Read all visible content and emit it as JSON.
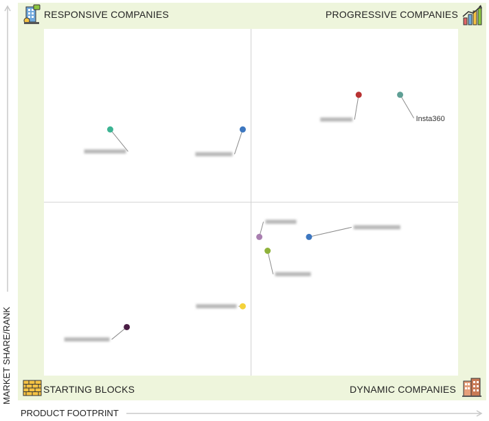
{
  "quadrants": {
    "top_left": "RESPONSIVE COMPANIES",
    "top_right": "PROGRESSIVE COMPANIES",
    "bottom_left": "STARTING BLOCKS",
    "bottom_right": "DYNAMIC COMPANIES"
  },
  "axes": {
    "x_label": "PRODUCT FOOTPRINT",
    "y_label": "MARKET SHARE/RANK"
  },
  "colors": {
    "frame_bg": "#eef5dc",
    "plot_bg": "#ffffff",
    "divider": "#d0d0d0",
    "axis_arrow": "#c8c8c8"
  },
  "chart_data": {
    "type": "scatter",
    "xlim": [
      0,
      100
    ],
    "ylim": [
      0,
      100
    ],
    "x_divider": 50,
    "y_divider": 50,
    "points": [
      {
        "label": "Insta360",
        "x": 86,
        "y": 81,
        "color": "#5f9f95",
        "blurred": false
      },
      {
        "label": "",
        "x": 76,
        "y": 81,
        "color": "#b83232",
        "blurred": true
      },
      {
        "label": "",
        "x": 48,
        "y": 71,
        "color": "#3d77c0",
        "blurred": true
      },
      {
        "label": "",
        "x": 16,
        "y": 71,
        "color": "#3cb493",
        "blurred": true
      },
      {
        "label": "",
        "x": 64,
        "y": 40,
        "color": "#3d77c0",
        "blurred": true
      },
      {
        "label": "",
        "x": 52,
        "y": 40,
        "color": "#a97fb0",
        "blurred": true
      },
      {
        "label": "",
        "x": 54,
        "y": 36,
        "color": "#8fb23b",
        "blurred": true
      },
      {
        "label": "",
        "x": 48,
        "y": 20,
        "color": "#f4d23a",
        "blurred": true
      },
      {
        "label": "",
        "x": 20,
        "y": 14,
        "color": "#4a1d44",
        "blurred": true
      }
    ]
  }
}
